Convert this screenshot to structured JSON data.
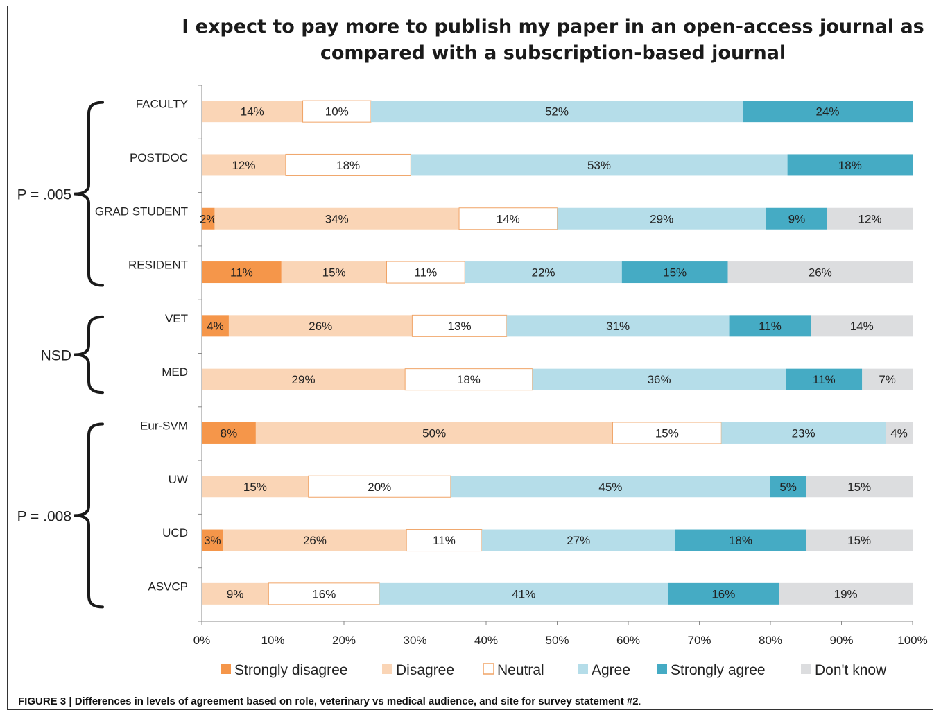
{
  "caption": {
    "label": "FIGURE 3 | Differences in levels of agreement based on role, veterinary vs medical audience, and site for survey statement #2",
    "end": "."
  },
  "chart_data": {
    "type": "bar",
    "orientation": "horizontal",
    "stacked": "percent",
    "title_lines": [
      "I expect to pay more to publish my paper in an open-access journal as",
      "compared with a subscription-based journal"
    ],
    "xlabel": "",
    "ylabel": "",
    "xlim": [
      0,
      100
    ],
    "x_ticks": [
      "0%",
      "10%",
      "20%",
      "30%",
      "40%",
      "50%",
      "60%",
      "70%",
      "80%",
      "90%",
      "100%"
    ],
    "grid": false,
    "legend_position": "bottom",
    "categories": [
      "FACULTY",
      "POSTDOC",
      "GRAD STUDENT",
      "RESIDENT",
      "VET",
      "MED",
      "Eur-SVM",
      "UW",
      "UCD",
      "ASVCP"
    ],
    "series": [
      {
        "name": "Strongly disagree",
        "color": "#f5964a",
        "values": [
          0,
          0,
          1.8,
          11.2,
          3.8,
          0,
          7.6,
          0,
          3.0,
          0
        ],
        "labels": [
          "",
          "",
          "2%",
          "11%",
          "4%",
          "",
          "8%",
          "",
          "3%",
          ""
        ]
      },
      {
        "name": "Disagree",
        "color": "#fad5b6",
        "values": [
          14.2,
          11.8,
          34.4,
          14.8,
          25.8,
          28.6,
          50.2,
          15.0,
          25.8,
          9.4
        ],
        "labels": [
          "14%",
          "12%",
          "34%",
          "15%",
          "26%",
          "29%",
          "50%",
          "15%",
          "26%",
          "9%"
        ]
      },
      {
        "name": "Neutral",
        "color": "#ffffff",
        "values": [
          9.6,
          17.6,
          13.8,
          11.0,
          13.3,
          17.9,
          15.3,
          20.0,
          10.6,
          15.6
        ],
        "labels": [
          "10%",
          "18%",
          "14%",
          "11%",
          "13%",
          "18%",
          "15%",
          "20%",
          "11%",
          "16%"
        ]
      },
      {
        "name": "Agree",
        "color": "#b5dde9",
        "values": [
          52.3,
          53.0,
          29.4,
          22.1,
          31.3,
          35.7,
          23.1,
          45.0,
          27.2,
          40.6
        ],
        "labels": [
          "52%",
          "53%",
          "29%",
          "22%",
          "31%",
          "36%",
          "23%",
          "45%",
          "27%",
          "41%"
        ]
      },
      {
        "name": "Strongly agree",
        "color": "#45abc4",
        "values": [
          23.9,
          17.6,
          8.6,
          14.9,
          11.5,
          10.7,
          0,
          5.0,
          18.4,
          15.6
        ],
        "labels": [
          "24%",
          "18%",
          "9%",
          "15%",
          "11%",
          "11%",
          "",
          "5%",
          "18%",
          "16%"
        ]
      },
      {
        "name": "Don't know",
        "color": "#dcdddf",
        "values": [
          0,
          0,
          12.0,
          26.0,
          14.3,
          7.1,
          3.8,
          15.0,
          15.0,
          18.8
        ],
        "labels": [
          "",
          "",
          "12%",
          "26%",
          "14%",
          "7%",
          "4%",
          "15%",
          "15%",
          "19%"
        ]
      }
    ],
    "groups": [
      {
        "label": "P = .005",
        "categories": [
          "FACULTY",
          "POSTDOC",
          "GRAD STUDENT",
          "RESIDENT"
        ]
      },
      {
        "label": "NSD",
        "categories": [
          "VET",
          "MED"
        ]
      },
      {
        "label": "P = .008",
        "categories": [
          "Eur-SVM",
          "UW",
          "UCD",
          "ASVCP"
        ]
      }
    ]
  }
}
